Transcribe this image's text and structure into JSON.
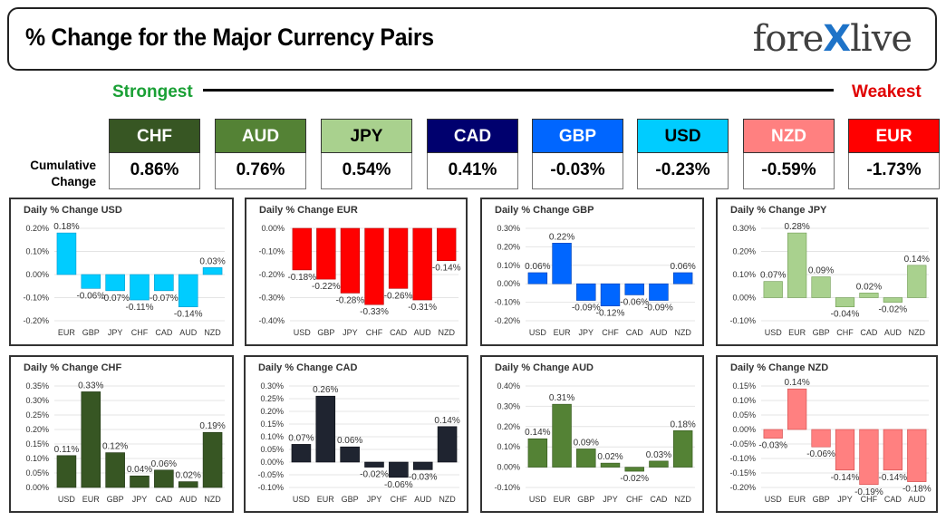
{
  "header": {
    "title": "% Change for the Major Currency Pairs",
    "logo_left": "fore",
    "logo_x": "X",
    "logo_right": "live"
  },
  "strength": {
    "strongest": "Strongest",
    "weakest": "Weakest",
    "cumulative_label_1": "Cumulative",
    "cumulative_label_2": "Change"
  },
  "currencies": [
    {
      "code": "CHF",
      "value": "0.86%",
      "bg": "#375623",
      "fg": "#ffffff"
    },
    {
      "code": "AUD",
      "value": "0.76%",
      "bg": "#548235",
      "fg": "#ffffff"
    },
    {
      "code": "JPY",
      "value": "0.54%",
      "bg": "#a9d18e",
      "fg": "#000000"
    },
    {
      "code": "CAD",
      "value": "0.41%",
      "bg": "#00006e",
      "fg": "#ffffff"
    },
    {
      "code": "GBP",
      "value": "-0.03%",
      "bg": "#0066ff",
      "fg": "#ffffff"
    },
    {
      "code": "USD",
      "value": "-0.23%",
      "bg": "#00ccff",
      "fg": "#000000"
    },
    {
      "code": "NZD",
      "value": "-0.59%",
      "bg": "#ff8080",
      "fg": "#ffffff"
    },
    {
      "code": "EUR",
      "value": "-1.73%",
      "bg": "#ff0000",
      "fg": "#ffffff"
    }
  ],
  "chart_data": [
    {
      "type": "bar",
      "title": "Daily % Change USD",
      "categories": [
        "EUR",
        "GBP",
        "JPY",
        "CHF",
        "CAD",
        "AUD",
        "NZD"
      ],
      "values": [
        0.18,
        -0.06,
        -0.07,
        -0.11,
        -0.07,
        -0.14,
        0.03
      ],
      "labels": [
        "0.18%",
        "-0.06%",
        "-0.07%",
        "-0.11%",
        "-0.07%",
        "-0.14%",
        "0.03%"
      ],
      "ylim": [
        -0.2,
        0.2
      ],
      "yticks": [
        0.2,
        0.1,
        0.0,
        -0.1,
        -0.2
      ],
      "yticklabels": [
        "0.20%",
        "0.10%",
        "0.00%",
        "-0.10%",
        "-0.20%"
      ],
      "color": "#00ccff",
      "dark": "#0099cc"
    },
    {
      "type": "bar",
      "title": "Daily % Change EUR",
      "categories": [
        "USD",
        "GBP",
        "JPY",
        "CHF",
        "CAD",
        "AUD",
        "NZD"
      ],
      "values": [
        -0.18,
        -0.22,
        -0.28,
        -0.33,
        -0.26,
        -0.31,
        -0.14
      ],
      "labels": [
        "-0.18%",
        "-0.22%",
        "-0.28%",
        "-0.33%",
        "-0.26%",
        "-0.31%",
        "-0.14%"
      ],
      "ylim": [
        -0.4,
        0.0
      ],
      "yticks": [
        0.0,
        -0.1,
        -0.2,
        -0.3,
        -0.4
      ],
      "yticklabels": [
        "0.00%",
        "-0.10%",
        "-0.20%",
        "-0.30%",
        "-0.40%"
      ],
      "color": "#ff0000",
      "dark": "#b00000"
    },
    {
      "type": "bar",
      "title": "Daily % Change GBP",
      "categories": [
        "USD",
        "EUR",
        "JPY",
        "CHF",
        "CAD",
        "AUD",
        "NZD"
      ],
      "values": [
        0.06,
        0.22,
        -0.09,
        -0.12,
        -0.06,
        -0.09,
        0.06
      ],
      "labels": [
        "0.06%",
        "0.22%",
        "-0.09%",
        "-0.12%",
        "-0.06%",
        "-0.09%",
        "0.06%"
      ],
      "ylim": [
        -0.2,
        0.3
      ],
      "yticks": [
        0.3,
        0.2,
        0.1,
        0.0,
        -0.1,
        -0.2
      ],
      "yticklabels": [
        "0.30%",
        "0.20%",
        "0.10%",
        "0.00%",
        "-0.10%",
        "-0.20%"
      ],
      "color": "#0066ff",
      "dark": "#0040b0"
    },
    {
      "type": "bar",
      "title": "Daily % Change JPY",
      "categories": [
        "USD",
        "EUR",
        "GBP",
        "CHF",
        "CAD",
        "AUD",
        "NZD"
      ],
      "values": [
        0.07,
        0.28,
        0.09,
        -0.04,
        0.02,
        -0.02,
        0.14
      ],
      "labels": [
        "0.07%",
        "0.28%",
        "0.09%",
        "-0.04%",
        "0.02%",
        "-0.02%",
        "0.14%"
      ],
      "ylim": [
        -0.1,
        0.3
      ],
      "yticks": [
        0.3,
        0.2,
        0.1,
        0.0,
        -0.1
      ],
      "yticklabels": [
        "0.30%",
        "0.20%",
        "0.10%",
        "0.00%",
        "-0.10%"
      ],
      "color": "#a9d18e",
      "dark": "#6f9a52"
    },
    {
      "type": "bar",
      "title": "Daily % Change CHF",
      "categories": [
        "USD",
        "EUR",
        "GBP",
        "JPY",
        "CAD",
        "AUD",
        "NZD"
      ],
      "values": [
        0.11,
        0.33,
        0.12,
        0.04,
        0.06,
        0.02,
        0.19
      ],
      "labels": [
        "0.11%",
        "0.33%",
        "0.12%",
        "0.04%",
        "0.06%",
        "0.02%",
        "0.19%"
      ],
      "ylim": [
        0.0,
        0.35
      ],
      "yticks": [
        0.35,
        0.3,
        0.25,
        0.2,
        0.15,
        0.1,
        0.05,
        0.0
      ],
      "yticklabels": [
        "0.35%",
        "0.30%",
        "0.25%",
        "0.20%",
        "0.15%",
        "0.10%",
        "0.05%",
        "0.00%"
      ],
      "color": "#375623",
      "dark": "#1e3312"
    },
    {
      "type": "bar",
      "title": "Daily % Change CAD",
      "categories": [
        "USD",
        "EUR",
        "GBP",
        "JPY",
        "CHF",
        "AUD",
        "NZD"
      ],
      "values": [
        0.07,
        0.26,
        0.06,
        -0.02,
        -0.06,
        -0.03,
        0.14
      ],
      "labels": [
        "0.07%",
        "0.26%",
        "0.06%",
        "-0.02%",
        "-0.06%",
        "-0.03%",
        "0.14%"
      ],
      "ylim": [
        -0.1,
        0.3
      ],
      "yticks": [
        0.3,
        0.25,
        0.2,
        0.15,
        0.1,
        0.05,
        0.0,
        -0.05,
        -0.1
      ],
      "yticklabels": [
        "0.30%",
        "0.25%",
        "0.20%",
        "0.15%",
        "0.10%",
        "0.05%",
        "0.00%",
        "-0.05%",
        "-0.10%"
      ],
      "color": "#1f2430",
      "dark": "#0a0d14"
    },
    {
      "type": "bar",
      "title": "Daily % Change AUD",
      "categories": [
        "USD",
        "EUR",
        "GBP",
        "JPY",
        "CHF",
        "CAD",
        "NZD"
      ],
      "values": [
        0.14,
        0.31,
        0.09,
        0.02,
        -0.02,
        0.03,
        0.18
      ],
      "labels": [
        "0.14%",
        "0.31%",
        "0.09%",
        "0.02%",
        "-0.02%",
        "0.03%",
        "0.18%"
      ],
      "ylim": [
        -0.1,
        0.4
      ],
      "yticks": [
        0.4,
        0.3,
        0.2,
        0.1,
        0.0,
        -0.1
      ],
      "yticklabels": [
        "0.40%",
        "0.30%",
        "0.20%",
        "0.10%",
        "0.00%",
        "-0.10%"
      ],
      "color": "#548235",
      "dark": "#34561c"
    },
    {
      "type": "bar",
      "title": "Daily % Change NZD",
      "categories": [
        "USD",
        "EUR",
        "GBP",
        "JPY",
        "CHF",
        "CAD",
        "AUD"
      ],
      "values": [
        -0.03,
        0.14,
        -0.06,
        -0.14,
        -0.19,
        -0.14,
        -0.18
      ],
      "labels": [
        "-0.03%",
        "0.14%",
        "-0.06%",
        "-0.14%",
        "-0.19%",
        "-0.14%",
        "-0.18%"
      ],
      "ylim": [
        -0.2,
        0.15
      ],
      "yticks": [
        0.15,
        0.1,
        0.05,
        0.0,
        -0.05,
        -0.1,
        -0.15,
        -0.2
      ],
      "yticklabels": [
        "0.15%",
        "0.10%",
        "0.05%",
        "0.00%",
        "-0.05%",
        "-0.10%",
        "-0.15%",
        "-0.20%"
      ],
      "color": "#ff8080",
      "dark": "#d04848"
    }
  ]
}
